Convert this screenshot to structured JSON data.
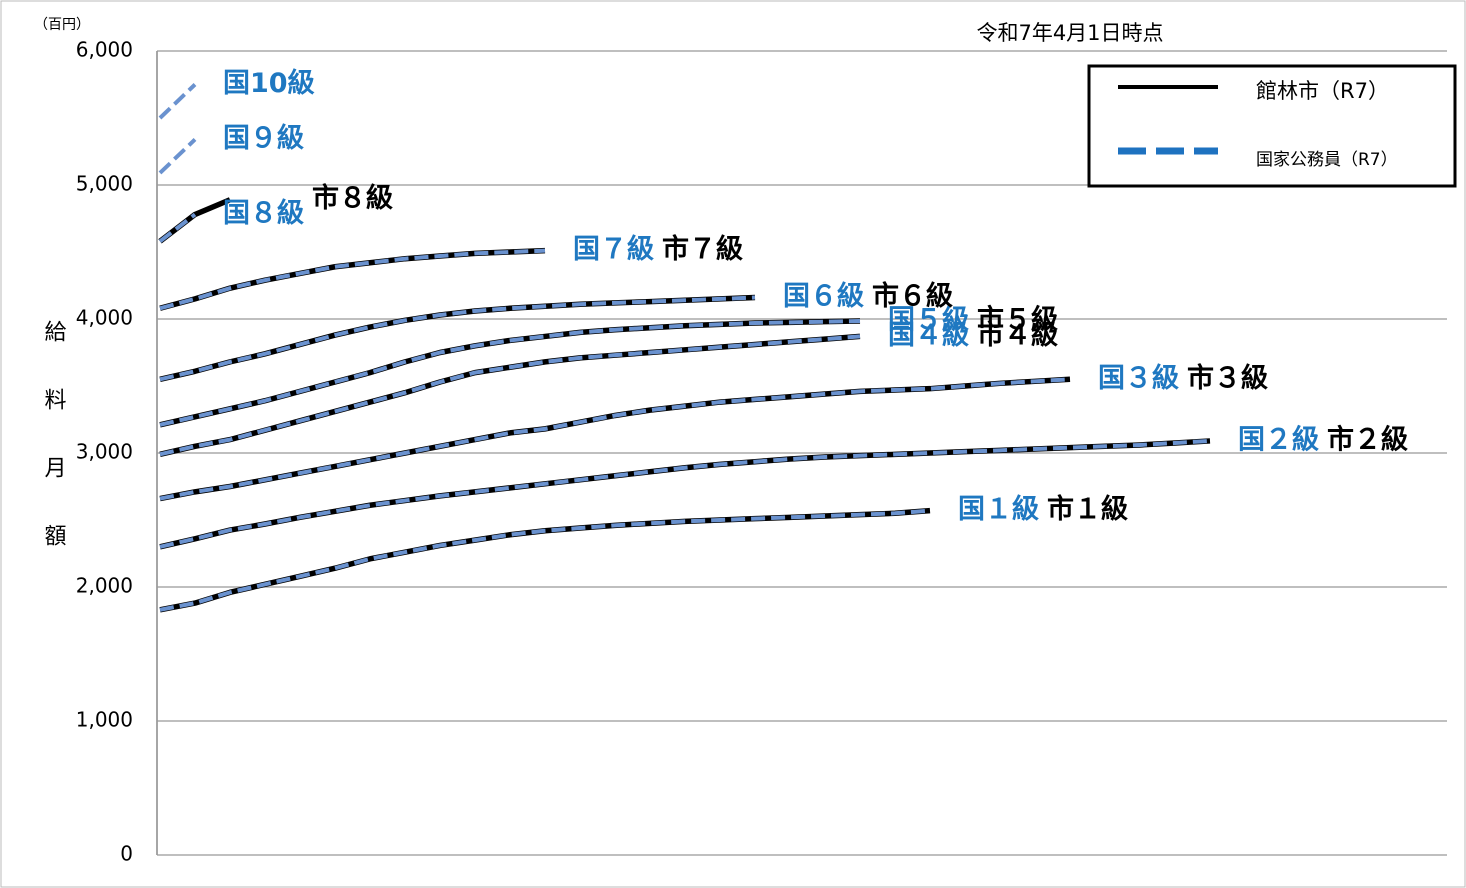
{
  "chart_data": {
    "type": "line",
    "unit_label": "（百円）",
    "note": "令和7年4月1日時点",
    "y_label": "給料月額",
    "categories": [
      null,
      null,
      null,
      null,
      null,
      null,
      null,
      null,
      null,
      null,
      null,
      null,
      null,
      null,
      null,
      null,
      null,
      null,
      null,
      null,
      null,
      null,
      null,
      null,
      null,
      null,
      null,
      null,
      null,
      null,
      null
    ],
    "ylim": [
      0,
      6000
    ],
    "yticks": [
      0,
      {
        "value": 1000,
        "label": "1,000"
      },
      {
        "value": 2000,
        "label": "2,000"
      },
      {
        "value": 3000,
        "label": "3,000"
      },
      {
        "value": 4000,
        "label": "4,000"
      },
      {
        "value": 5000,
        "label": "5,000"
      },
      {
        "value": 6000,
        "label": "6,000"
      }
    ],
    "grid": true,
    "legend_position": "upper right",
    "legend": [
      {
        "name": "館林市（R7）",
        "color": "#000000",
        "line_style": "solid"
      },
      {
        "name": "国家公務員（R7）",
        "color": "#1e72c0",
        "line_style": "dashed"
      }
    ],
    "national_label_color": "#1f78c1",
    "series": [
      {
        "name": "市１級",
        "color": "#000000",
        "line_style": "solid",
        "values": [
          1830,
          1880,
          1960,
          2020,
          2080,
          2140,
          2210,
          2260,
          2310,
          2350,
          2390,
          2420,
          2440,
          2460,
          2475,
          2490,
          2500,
          2510,
          2520,
          2530,
          2540,
          2550,
          2570,
          null,
          null,
          null,
          null,
          null,
          null,
          null,
          null
        ]
      },
      {
        "name": "国１級",
        "color": "#6a92cf",
        "line_style": "dashed",
        "values": [
          1830,
          1880,
          1960,
          2020,
          2080,
          2140,
          2210,
          2260,
          2310,
          2350,
          2390,
          2420,
          2440,
          2460,
          2475,
          2490,
          2500,
          2510,
          2520,
          2530,
          2540,
          2550,
          2570,
          null,
          null,
          null,
          null,
          null,
          null,
          null,
          null
        ]
      },
      {
        "name": "市２級",
        "color": "#000000",
        "line_style": "solid",
        "values": [
          2300,
          2360,
          2425,
          2470,
          2520,
          2565,
          2610,
          2645,
          2680,
          2710,
          2740,
          2770,
          2800,
          2830,
          2860,
          2890,
          2915,
          2935,
          2955,
          2970,
          2980,
          2990,
          3000,
          3010,
          3020,
          3030,
          3040,
          3050,
          3060,
          3075,
          3090
        ]
      },
      {
        "name": "国２級",
        "color": "#6a92cf",
        "line_style": "dashed",
        "values": [
          2300,
          2360,
          2425,
          2470,
          2520,
          2565,
          2610,
          2645,
          2680,
          2710,
          2740,
          2770,
          2800,
          2830,
          2860,
          2890,
          2915,
          2935,
          2955,
          2970,
          2980,
          2990,
          3000,
          3010,
          3020,
          3030,
          3040,
          3050,
          3060,
          3075,
          3090
        ]
      },
      {
        "name": "市３級",
        "color": "#000000",
        "line_style": "solid",
        "values": [
          2660,
          2710,
          2750,
          2800,
          2850,
          2900,
          2950,
          3000,
          3050,
          3100,
          3150,
          3180,
          3230,
          3280,
          3320,
          3350,
          3380,
          3400,
          3420,
          3440,
          3460,
          3470,
          3480,
          3500,
          3520,
          3535,
          3550,
          null,
          null,
          null,
          null
        ]
      },
      {
        "name": "国３級",
        "color": "#6a92cf",
        "line_style": "dashed",
        "values": [
          2660,
          2710,
          2750,
          2800,
          2850,
          2900,
          2950,
          3000,
          3050,
          3100,
          3150,
          3180,
          3230,
          3280,
          3320,
          3350,
          3380,
          3400,
          3420,
          3440,
          3460,
          3470,
          3480,
          3500,
          3520,
          3535,
          3550,
          null,
          null,
          null,
          null
        ]
      },
      {
        "name": "市４級",
        "color": "#000000",
        "line_style": "solid",
        "values": [
          2990,
          3050,
          3100,
          3170,
          3240,
          3310,
          3380,
          3450,
          3530,
          3600,
          3640,
          3680,
          3710,
          3730,
          3750,
          3770,
          3790,
          3810,
          3830,
          3850,
          3870,
          null,
          null,
          null,
          null,
          null,
          null,
          null,
          null,
          null,
          null
        ]
      },
      {
        "name": "国４級",
        "color": "#6a92cf",
        "line_style": "dashed",
        "values": [
          2990,
          3050,
          3100,
          3170,
          3240,
          3310,
          3380,
          3450,
          3530,
          3600,
          3640,
          3680,
          3710,
          3730,
          3750,
          3770,
          3790,
          3810,
          3830,
          3850,
          3870,
          null,
          null,
          null,
          null,
          null,
          null,
          null,
          null,
          null,
          null
        ]
      },
      {
        "name": "市５級",
        "color": "#000000",
        "line_style": "solid",
        "values": [
          3210,
          3270,
          3330,
          3390,
          3460,
          3530,
          3600,
          3680,
          3750,
          3800,
          3840,
          3870,
          3900,
          3920,
          3935,
          3950,
          3960,
          3970,
          3975,
          3980,
          3985,
          null,
          null,
          null,
          null,
          null,
          null,
          null,
          null,
          null,
          null
        ]
      },
      {
        "name": "国５級",
        "color": "#6a92cf",
        "line_style": "dashed",
        "values": [
          3210,
          3270,
          3330,
          3390,
          3460,
          3530,
          3600,
          3680,
          3750,
          3800,
          3840,
          3870,
          3900,
          3920,
          3935,
          3950,
          3960,
          3970,
          3975,
          3980,
          3985,
          null,
          null,
          null,
          null,
          null,
          null,
          null,
          null,
          null,
          null
        ]
      },
      {
        "name": "市６級",
        "color": "#000000",
        "line_style": "solid",
        "values": [
          3550,
          3610,
          3680,
          3740,
          3810,
          3880,
          3940,
          3990,
          4030,
          4060,
          4080,
          4095,
          4110,
          4120,
          4130,
          4140,
          4150,
          4160,
          null,
          null,
          null,
          null,
          null,
          null,
          null,
          null,
          null,
          null,
          null,
          null,
          null
        ]
      },
      {
        "name": "国６級",
        "color": "#6a92cf",
        "line_style": "dashed",
        "values": [
          3550,
          3610,
          3680,
          3740,
          3810,
          3880,
          3940,
          3990,
          4030,
          4060,
          4080,
          4095,
          4110,
          4120,
          4130,
          4140,
          4150,
          4160,
          null,
          null,
          null,
          null,
          null,
          null,
          null,
          null,
          null,
          null,
          null,
          null,
          null
        ]
      },
      {
        "name": "市７級",
        "color": "#000000",
        "line_style": "solid",
        "values": [
          4080,
          4150,
          4230,
          4290,
          4340,
          4390,
          4420,
          4450,
          4470,
          4490,
          4500,
          4510,
          null,
          null,
          null,
          null,
          null,
          null,
          null,
          null,
          null,
          null,
          null,
          null,
          null,
          null,
          null,
          null,
          null,
          null,
          null
        ]
      },
      {
        "name": "国７級",
        "color": "#6a92cf",
        "line_style": "dashed",
        "values": [
          4080,
          4150,
          4230,
          4290,
          4340,
          4390,
          4420,
          4450,
          4470,
          4490,
          4500,
          4510,
          null,
          null,
          null,
          null,
          null,
          null,
          null,
          null,
          null,
          null,
          null,
          null,
          null,
          null,
          null,
          null,
          null,
          null,
          null
        ]
      },
      {
        "name": "市８級",
        "color": "#000000",
        "line_style": "solid",
        "values": [
          4580,
          4780,
          4890,
          null,
          null,
          null,
          null,
          null,
          null,
          null,
          null,
          null,
          null,
          null,
          null,
          null,
          null,
          null,
          null,
          null,
          null,
          null,
          null,
          null,
          null,
          null,
          null,
          null,
          null,
          null,
          null
        ]
      },
      {
        "name": "国８級",
        "color": "#6a92cf",
        "line_style": "dashed",
        "values": [
          4580,
          4780,
          null,
          null,
          null,
          null,
          null,
          null,
          null,
          null,
          null,
          null,
          null,
          null,
          null,
          null,
          null,
          null,
          null,
          null,
          null,
          null,
          null,
          null,
          null,
          null,
          null,
          null,
          null,
          null,
          null
        ]
      },
      {
        "name": "国９級",
        "color": "#6a92cf",
        "line_style": "dashed",
        "values": [
          5090,
          5340,
          null,
          null,
          null,
          null,
          null,
          null,
          null,
          null,
          null,
          null,
          null,
          null,
          null,
          null,
          null,
          null,
          null,
          null,
          null,
          null,
          null,
          null,
          null,
          null,
          null,
          null,
          null,
          null,
          null
        ]
      },
      {
        "name": "国10級",
        "color": "#6a92cf",
        "line_style": "dashed",
        "values": [
          5500,
          5750,
          null,
          null,
          null,
          null,
          null,
          null,
          null,
          null,
          null,
          null,
          null,
          null,
          null,
          null,
          null,
          null,
          null,
          null,
          null,
          null,
          null,
          null,
          null,
          null,
          null,
          null,
          null,
          null,
          null
        ]
      }
    ]
  }
}
